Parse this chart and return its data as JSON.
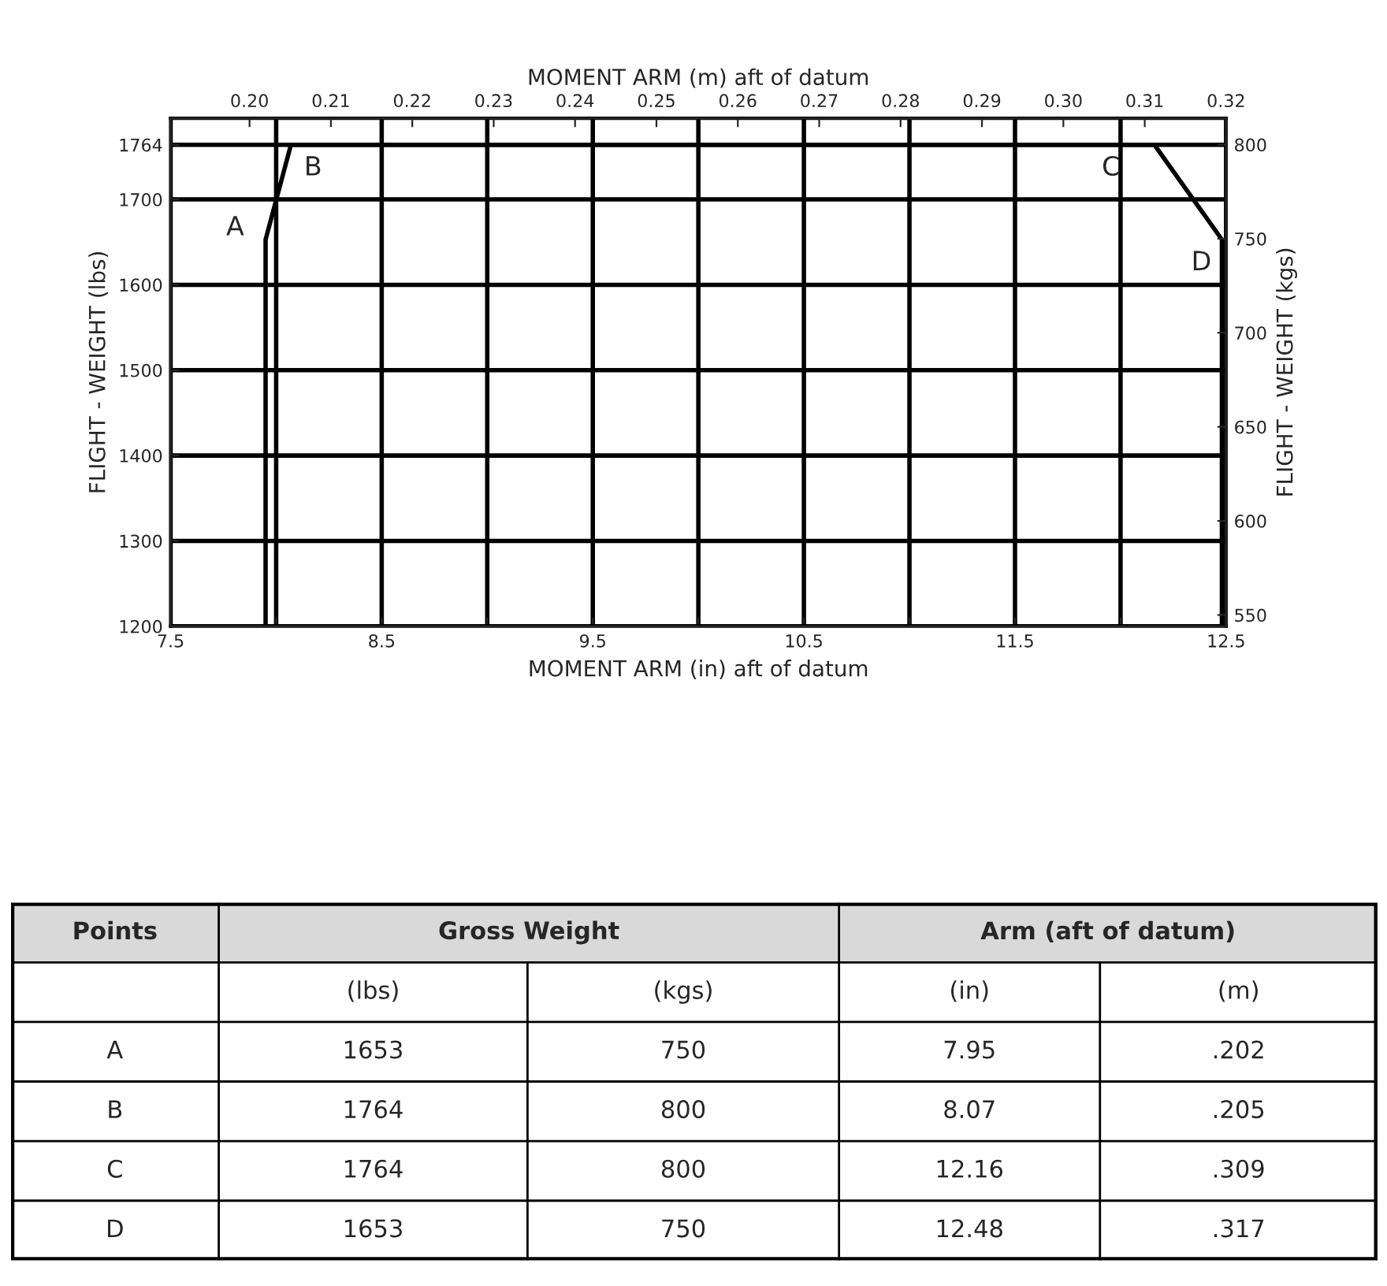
{
  "chart_data": [
    {
      "type": "line",
      "xlabel": "MOMENT ARM (in) aft of datum",
      "x2label": "MOMENT ARM (m) aft of datum",
      "ylabel": "FLIGHT - WEIGHT (lbs)",
      "y2label": "FLIGHT - WEIGHT (kgs)",
      "series": [
        {
          "color": "#000000",
          "x": [
            7.95,
            7.95,
            8.07,
            12.16,
            12.48,
            12.48
          ],
          "values": [
            1200,
            1653,
            1764,
            1764,
            1653,
            1200
          ]
        }
      ],
      "xlim": [
        7.5,
        12.5
      ],
      "xticks": [
        7.5,
        {
          "value": 8,
          "label": null
        },
        8.5,
        {
          "value": 9,
          "label": null
        },
        9.5,
        {
          "value": 10,
          "label": null
        },
        10.5,
        {
          "value": 11,
          "label": null
        },
        11.5,
        {
          "value": 12,
          "label": null
        },
        12.5
      ],
      "ylim": [
        1200,
        1795
      ],
      "yticks": [
        1200,
        1300,
        1400,
        1500,
        1600,
        1700,
        1764
      ],
      "y2lim": [
        544,
        814
      ],
      "y2ticks": [
        550,
        600,
        650,
        700,
        750,
        800
      ],
      "x2lim": [
        0.1903,
        0.32
      ],
      "x2ticks": [
        {
          "value": 0.2,
          "label": "0.20"
        },
        0.21,
        0.22,
        0.23,
        0.24,
        0.25,
        0.26,
        0.27,
        0.28,
        0.29,
        {
          "value": 0.3,
          "label": "0.30"
        },
        0.31,
        0.32
      ],
      "grid": true,
      "marker": "none",
      "line_style": "solid",
      "annotations": [
        {
          "text": "A",
          "x": 7.95,
          "y": 1653
        },
        {
          "text": "B",
          "x": 8.07,
          "y": 1764
        },
        {
          "text": "C",
          "x": 12.16,
          "y": 1764
        },
        {
          "text": "D",
          "x": 12.48,
          "y": 1653
        }
      ]
    },
    {
      "type": "other",
      "annotations": [
        "Points",
        "Gross Weight",
        "Arm (aft of datum)",
        "(lbs)",
        "(kgs)",
        "(in)",
        "(m)",
        "A",
        "1653",
        "750",
        "7.95",
        ".202",
        "B",
        "1764",
        "800",
        "8.07",
        ".205",
        "C",
        "1764",
        "800",
        "12.16",
        ".309",
        "D",
        "1653",
        "750",
        "12.48",
        ".317"
      ]
    }
  ]
}
